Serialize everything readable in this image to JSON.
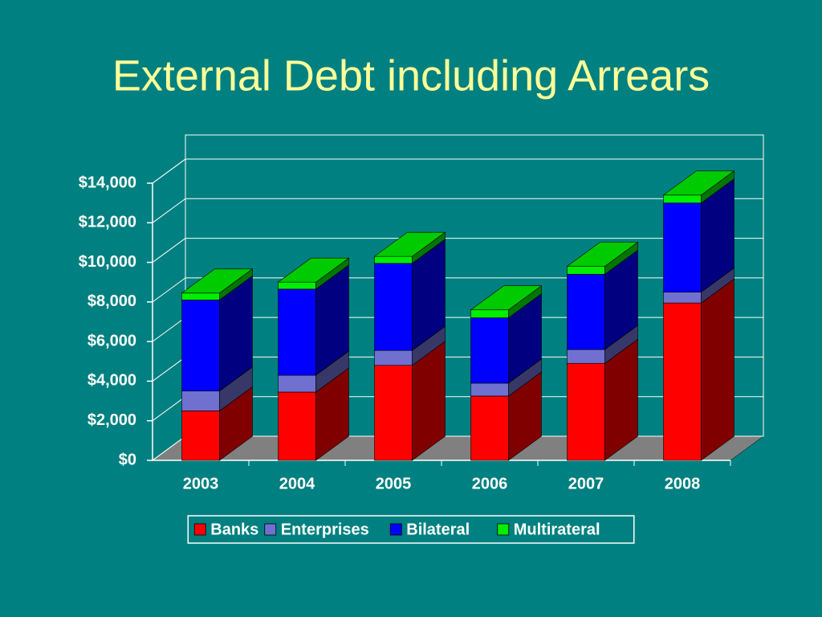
{
  "chart_data": {
    "type": "bar3d_stacked",
    "title": "External Debt including Arrears",
    "categories": [
      "2003",
      "2004",
      "2005",
      "2006",
      "2007",
      "2008"
    ],
    "series": [
      {
        "name": "Banks",
        "color": "#ff0000",
        "values": [
          2500,
          3450,
          4800,
          3250,
          4900,
          7950
        ]
      },
      {
        "name": "Enterprises",
        "color": "#7070d0",
        "values": [
          1000,
          850,
          750,
          650,
          700,
          550
        ]
      },
      {
        "name": "Bilateral",
        "color": "#0000ff",
        "values": [
          4600,
          4350,
          4400,
          3300,
          3800,
          4500
        ]
      },
      {
        "name": "Multirateral",
        "color": "#00ee00",
        "values": [
          350,
          350,
          350,
          400,
          400,
          400
        ]
      }
    ],
    "ylim": [
      0,
      14000
    ],
    "yticks": [
      {
        "value": 0,
        "label": "$0"
      },
      {
        "value": 2000,
        "label": "$2,000"
      },
      {
        "value": 4000,
        "label": "$4,000"
      },
      {
        "value": 6000,
        "label": "$6,000"
      },
      {
        "value": 8000,
        "label": "$8,000"
      },
      {
        "value": 10000,
        "label": "$10,000"
      },
      {
        "value": 12000,
        "label": "$12,000"
      },
      {
        "value": 14000,
        "label": "$14,000"
      }
    ],
    "grid": true,
    "legend": "bottom"
  }
}
